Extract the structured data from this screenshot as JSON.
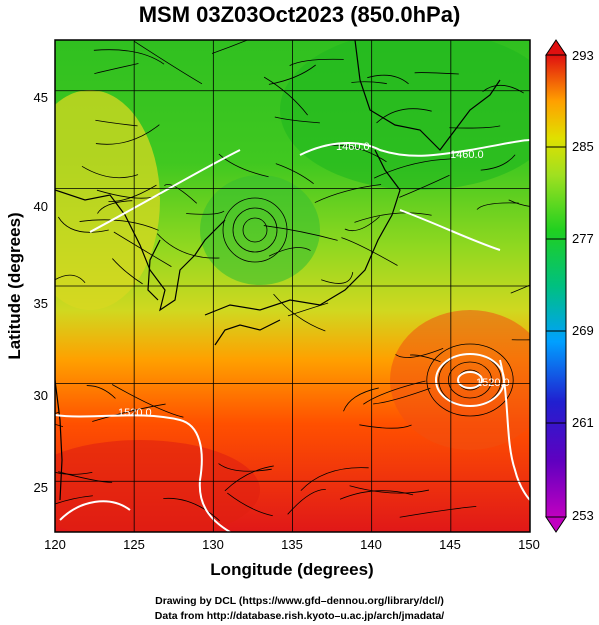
{
  "title": "MSM 03Z03Oct2023 (850.0hPa)",
  "map": {
    "xlabel": "Longitude (degrees)",
    "ylabel": "Latitude  (degrees)",
    "x_ticks": [
      "120",
      "125",
      "130",
      "135",
      "140",
      "145",
      "150"
    ],
    "y_ticks": [
      "25",
      "30",
      "35",
      "40",
      "45"
    ],
    "x_range": [
      120,
      150
    ],
    "y_range": [
      22.4,
      47.6
    ],
    "contour_labels": [
      "1520.0",
      "1520.0",
      "1460.0",
      "1460.0"
    ],
    "field": "temperature (shaded) with streamlines and geopotential height contours"
  },
  "colorbar": {
    "ticks": [
      "293",
      "285",
      "277",
      "269",
      "261",
      "253"
    ],
    "range": [
      253,
      293
    ],
    "colors": [
      "#c000c0",
      "#2020d0",
      "#00a0ff",
      "#00c080",
      "#20d020",
      "#a0e020",
      "#e0e000",
      "#ffa000",
      "#ff5000",
      "#e01010"
    ]
  },
  "credits": {
    "line1": "Drawing by DCL (https://www.gfd–dennou.org/library/dcl/)",
    "line2": "Data from http://database.rish.kyoto–u.ac.jp/arch/jmadata/"
  }
}
